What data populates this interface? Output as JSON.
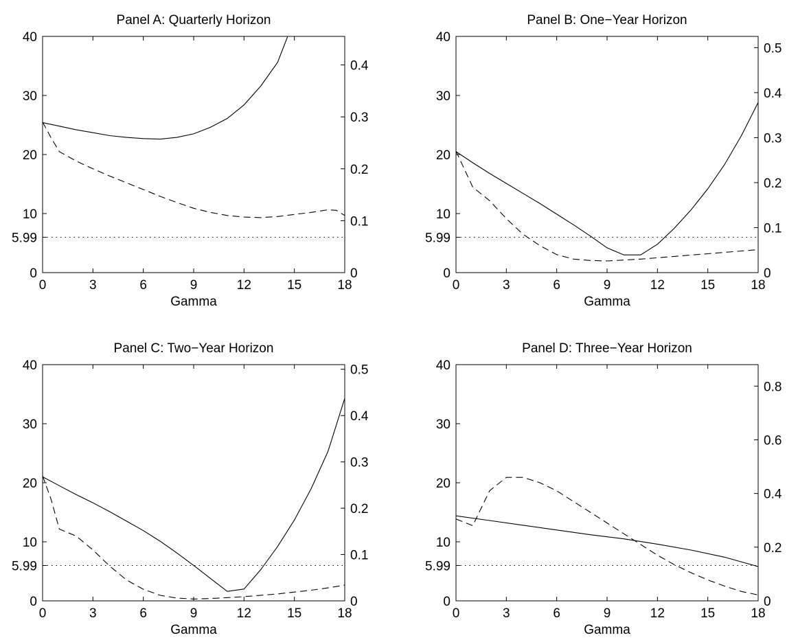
{
  "chart_data": [
    {
      "type": "line",
      "title": "Panel A: Quarterly Horizon",
      "xlabel": "Gamma",
      "xlim": [
        0,
        18
      ],
      "xticks": [
        "0",
        "3",
        "6",
        "9",
        "12",
        "15",
        "18"
      ],
      "ylim_left": [
        0,
        40
      ],
      "yticks_left": [
        "0",
        "5.99",
        "10",
        "20",
        "30",
        "40"
      ],
      "ylim_right": [
        0,
        0.455
      ],
      "yticks_right": [
        "0",
        "0.1",
        "0.2",
        "0.3",
        "0.4"
      ],
      "reference_line": {
        "y": 5.99,
        "style": "dotted"
      },
      "series": [
        {
          "axis": "left",
          "style": "solid",
          "x": [
            0,
            1,
            2,
            3,
            4,
            5,
            6,
            7,
            8,
            9,
            10,
            11,
            12,
            13,
            14,
            14.6
          ],
          "y": [
            25.4,
            24.8,
            24.2,
            23.7,
            23.2,
            22.9,
            22.7,
            22.6,
            22.9,
            23.5,
            24.6,
            26.1,
            28.4,
            31.6,
            35.6,
            40
          ]
        },
        {
          "axis": "right",
          "style": "dashed",
          "x": [
            0,
            0.5,
            1,
            2,
            3,
            4,
            5,
            6,
            7,
            8,
            9,
            10,
            11,
            12,
            13,
            14,
            15,
            16,
            17,
            17.5,
            18
          ],
          "y": [
            0.29,
            0.26,
            0.233,
            0.215,
            0.2,
            0.186,
            0.173,
            0.16,
            0.147,
            0.135,
            0.124,
            0.116,
            0.11,
            0.107,
            0.106,
            0.108,
            0.112,
            0.116,
            0.121,
            0.12,
            0.11
          ]
        }
      ]
    },
    {
      "type": "line",
      "title": "Panel B: One−Year Horizon",
      "xlabel": "Gamma",
      "xlim": [
        0,
        18
      ],
      "xticks": [
        "0",
        "3",
        "6",
        "9",
        "12",
        "15",
        "18"
      ],
      "ylim_left": [
        0,
        40
      ],
      "yticks_left": [
        "0",
        "5.99",
        "10",
        "20",
        "30",
        "40"
      ],
      "ylim_right": [
        0,
        0.525
      ],
      "yticks_right": [
        "0",
        "0.1",
        "0.2",
        "0.3",
        "0.4",
        "0.5"
      ],
      "reference_line": {
        "y": 5.99,
        "style": "dotted"
      },
      "series": [
        {
          "axis": "left",
          "style": "solid",
          "x": [
            0,
            1,
            2,
            3,
            4,
            5,
            6,
            7,
            8,
            9,
            10,
            11,
            12,
            13,
            14,
            15,
            16,
            17,
            18
          ],
          "y": [
            20.5,
            18.6,
            16.8,
            15.1,
            13.4,
            11.7,
            9.9,
            8.1,
            6.2,
            4.2,
            3.0,
            3.0,
            4.8,
            7.5,
            10.6,
            14.2,
            18.3,
            23.2,
            28.8
          ]
        },
        {
          "axis": "right",
          "style": "dashed",
          "x": [
            0,
            0.5,
            1,
            2,
            3,
            4,
            5,
            6,
            7,
            8,
            9,
            10,
            11,
            12,
            13,
            14,
            15,
            16,
            17,
            18
          ],
          "y": [
            0.27,
            0.23,
            0.19,
            0.16,
            0.12,
            0.085,
            0.06,
            0.04,
            0.03,
            0.027,
            0.026,
            0.028,
            0.03,
            0.033,
            0.036,
            0.039,
            0.042,
            0.045,
            0.048,
            0.051
          ]
        }
      ]
    },
    {
      "type": "line",
      "title": "Panel C: Two−Year Horizon",
      "xlabel": "Gamma",
      "xlim": [
        0,
        18
      ],
      "xticks": [
        "0",
        "3",
        "6",
        "9",
        "12",
        "15",
        "18"
      ],
      "ylim_left": [
        0,
        40
      ],
      "yticks_left": [
        "0",
        "5.99",
        "10",
        "20",
        "30",
        "40"
      ],
      "ylim_right": [
        0,
        0.51
      ],
      "yticks_right": [
        "0",
        "0.1",
        "0.2",
        "0.3",
        "0.4",
        "0.5"
      ],
      "reference_line": {
        "y": 5.99,
        "style": "dotted"
      },
      "series": [
        {
          "axis": "left",
          "style": "solid",
          "x": [
            0,
            1,
            2,
            3,
            4,
            5,
            6,
            7,
            8,
            9,
            10,
            11,
            12,
            13,
            14,
            15,
            16,
            17,
            18
          ],
          "y": [
            21.0,
            19.5,
            18.0,
            16.6,
            15.1,
            13.5,
            11.9,
            10.1,
            8.1,
            6.0,
            3.8,
            1.6,
            2.0,
            5.3,
            9.2,
            13.7,
            19.0,
            25.3,
            34.3
          ]
        },
        {
          "axis": "right",
          "style": "dashed",
          "x": [
            0,
            0.5,
            1,
            2,
            3,
            4,
            5,
            6,
            7,
            8,
            9,
            10,
            11,
            12,
            13,
            14,
            15,
            16,
            17,
            18
          ],
          "y": [
            0.27,
            0.22,
            0.155,
            0.14,
            0.11,
            0.075,
            0.045,
            0.025,
            0.012,
            0.006,
            0.004,
            0.005,
            0.007,
            0.009,
            0.012,
            0.015,
            0.019,
            0.023,
            0.028,
            0.034
          ]
        }
      ]
    },
    {
      "type": "line",
      "title": "Panel D: Three−Year Horizon",
      "xlabel": "Gamma",
      "xlim": [
        0,
        18
      ],
      "xticks": [
        "0",
        "3",
        "6",
        "9",
        "12",
        "15",
        "18"
      ],
      "ylim_left": [
        0,
        40
      ],
      "yticks_left": [
        "0",
        "5.99",
        "10",
        "20",
        "30",
        "40"
      ],
      "ylim_right": [
        0,
        0.88
      ],
      "yticks_right": [
        "0",
        "0.2",
        "0.4",
        "0.6",
        "0.8"
      ],
      "reference_line": {
        "y": 5.99,
        "style": "dotted"
      },
      "series": [
        {
          "axis": "left",
          "style": "solid",
          "x": [
            0,
            2,
            4,
            6,
            8,
            10,
            12,
            14,
            16,
            18
          ],
          "y": [
            14.4,
            13.6,
            12.8,
            12.0,
            11.2,
            10.5,
            9.6,
            8.6,
            7.4,
            5.8
          ]
        },
        {
          "axis": "right",
          "style": "dashed",
          "x": [
            0,
            1,
            2,
            3,
            4,
            5,
            6,
            7,
            8,
            9,
            10,
            11,
            12,
            13,
            14,
            15,
            16,
            17,
            18
          ],
          "y": [
            0.305,
            0.28,
            0.41,
            0.46,
            0.46,
            0.44,
            0.41,
            0.37,
            0.33,
            0.29,
            0.25,
            0.21,
            0.17,
            0.135,
            0.105,
            0.078,
            0.055,
            0.035,
            0.022
          ]
        }
      ]
    }
  ]
}
